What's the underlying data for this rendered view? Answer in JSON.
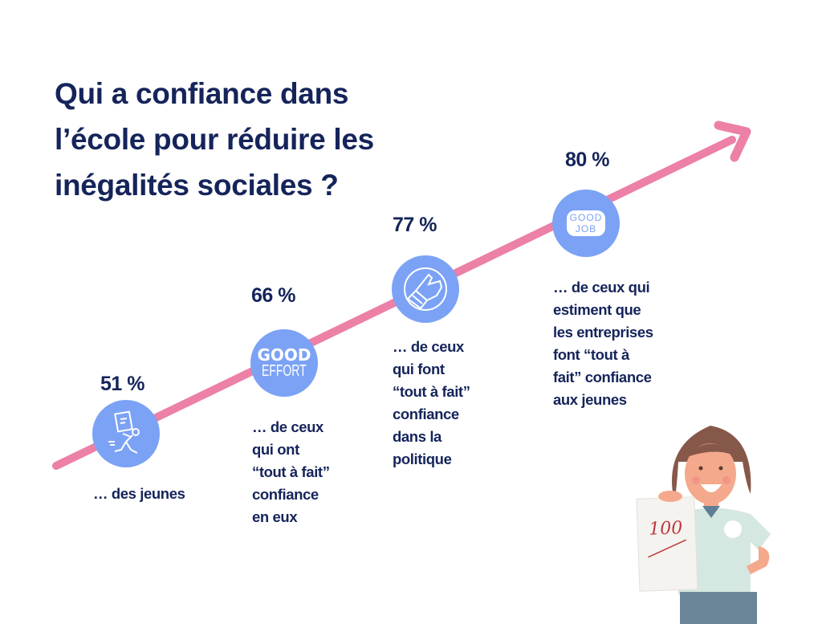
{
  "title": {
    "lines": [
      "Qui a confiance dans",
      "l’école pour réduire les",
      "inégalités sociales ?"
    ]
  },
  "colors": {
    "text": "#15245a",
    "arrow": "#ec80a6",
    "circle": "#7ba2f5"
  },
  "items": [
    {
      "percent": "51 %",
      "icon": "running-student-icon",
      "desc": [
        "… des jeunes"
      ]
    },
    {
      "percent": "66 %",
      "icon": "good-effort-badge-icon",
      "icon_text": [
        "GOOD",
        "EFFORT"
      ],
      "desc": [
        "… de ceux",
        "qui ont",
        "“tout à fait”",
        "confiance",
        "en eux"
      ]
    },
    {
      "percent": "77 %",
      "icon": "thumbs-up-icon",
      "desc": [
        "… de ceux",
        "qui font",
        "“tout à fait”",
        "confiance",
        "dans la",
        "politique"
      ]
    },
    {
      "percent": "80 %",
      "icon": "good-job-badge-icon",
      "icon_text": [
        "GOOD",
        "JOB"
      ],
      "desc": [
        "… de ceux qui",
        "estiment que",
        "les entreprises",
        "font “tout à",
        "fait” confiance",
        "aux jeunes"
      ]
    }
  ],
  "illustration": {
    "paper_text": "100"
  }
}
